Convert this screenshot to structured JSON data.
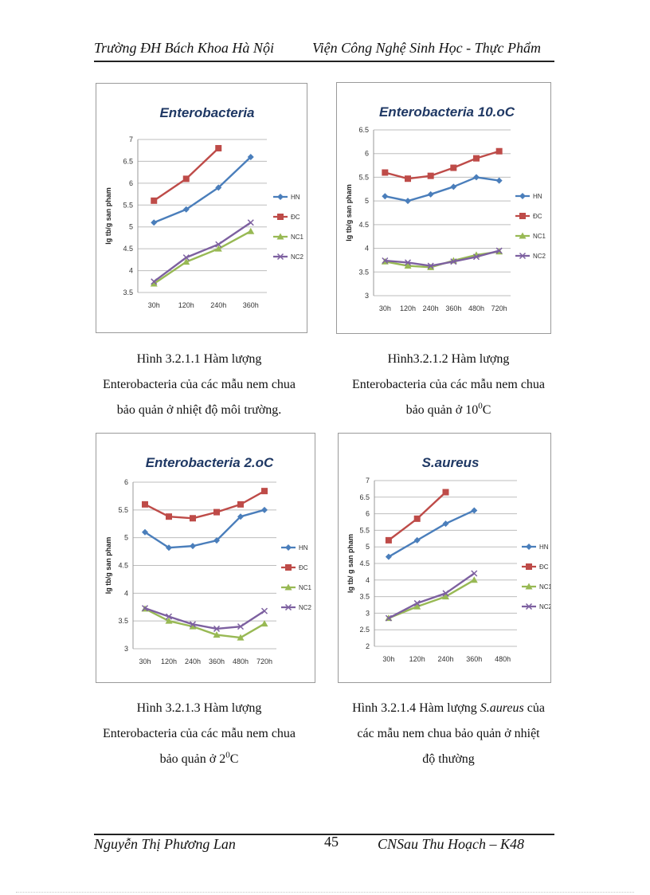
{
  "header": {
    "left": "Trường ĐH Bách Khoa Hà Nội",
    "right": "Viện Công Nghệ Sinh Học - Thực Phẩm"
  },
  "chart_data": [
    {
      "type": "line",
      "title": "Enterobacteria",
      "ylabel": "lg tb/g san pham",
      "ylim": [
        3.5,
        7
      ],
      "yticks": [
        "3.5",
        "4",
        "4.5",
        "5",
        "5.5",
        "6",
        "6.5",
        "7"
      ],
      "categories": [
        "30h",
        "120h",
        "240h",
        "360h"
      ],
      "series": [
        {
          "name": "HN",
          "color": "#4a7ebb",
          "marker": "diamond",
          "values": [
            5.1,
            5.4,
            5.9,
            6.6
          ]
        },
        {
          "name": "ĐC",
          "color": "#be4b48",
          "marker": "square",
          "values": [
            5.6,
            6.1,
            6.8,
            null
          ]
        },
        {
          "name": "NC1",
          "color": "#98b954",
          "marker": "triangle",
          "values": [
            3.7,
            4.2,
            4.5,
            4.9
          ]
        },
        {
          "name": "NC2",
          "color": "#7d60a0",
          "marker": "x",
          "values": [
            3.75,
            4.3,
            4.6,
            5.1
          ]
        }
      ]
    },
    {
      "type": "line",
      "title": "Enterobacteria 10.oC",
      "ylabel": "lg tb/g san pham",
      "ylim": [
        3,
        6.5
      ],
      "yticks": [
        "3",
        "3.5",
        "4",
        "4.5",
        "5",
        "5.5",
        "6",
        "6.5"
      ],
      "categories": [
        "30h",
        "120h",
        "240h",
        "360h",
        "480h",
        "720h"
      ],
      "series": [
        {
          "name": "HN",
          "color": "#4a7ebb",
          "marker": "diamond",
          "values": [
            5.1,
            5.0,
            5.14,
            5.3,
            5.5,
            5.43
          ]
        },
        {
          "name": "ĐC",
          "color": "#be4b48",
          "marker": "square",
          "values": [
            5.6,
            5.47,
            5.53,
            5.7,
            5.9,
            6.05
          ]
        },
        {
          "name": "NC1",
          "color": "#98b954",
          "marker": "triangle",
          "values": [
            3.72,
            3.63,
            3.6,
            3.74,
            3.86,
            3.93
          ]
        },
        {
          "name": "NC2",
          "color": "#7d60a0",
          "marker": "x",
          "values": [
            3.74,
            3.7,
            3.63,
            3.72,
            3.82,
            3.95
          ]
        }
      ]
    },
    {
      "type": "line",
      "title": "Enterobacteria 2.oC",
      "ylabel": "lg tb/g san pham",
      "ylim": [
        3,
        6
      ],
      "yticks": [
        "3",
        "3.5",
        "4",
        "4.5",
        "5",
        "5.5",
        "6"
      ],
      "categories": [
        "30h",
        "120h",
        "240h",
        "360h",
        "480h",
        "720h"
      ],
      "series": [
        {
          "name": "HN",
          "color": "#4a7ebb",
          "marker": "diamond",
          "values": [
            5.1,
            4.82,
            4.85,
            4.95,
            5.38,
            5.5
          ]
        },
        {
          "name": "ĐC",
          "color": "#be4b48",
          "marker": "square",
          "values": [
            5.6,
            5.38,
            5.35,
            5.46,
            5.6,
            5.84
          ]
        },
        {
          "name": "NC1",
          "color": "#98b954",
          "marker": "triangle",
          "values": [
            3.72,
            3.5,
            3.4,
            3.25,
            3.2,
            3.45
          ]
        },
        {
          "name": "NC2",
          "color": "#7d60a0",
          "marker": "x",
          "values": [
            3.73,
            3.58,
            3.44,
            3.36,
            3.4,
            3.68
          ]
        }
      ]
    },
    {
      "type": "line",
      "title": "S.aureus",
      "ylabel": "lg tb/ g san pham",
      "ylim": [
        2,
        7
      ],
      "yticks": [
        "2",
        "2.5",
        "3",
        "3.5",
        "4",
        "4.5",
        "5",
        "5.5",
        "6",
        "6.5",
        "7"
      ],
      "categories": [
        "30h",
        "120h",
        "240h",
        "360h",
        "480h"
      ],
      "series": [
        {
          "name": "HN",
          "color": "#4a7ebb",
          "marker": "diamond",
          "values": [
            4.7,
            5.2,
            5.7,
            6.1,
            null
          ]
        },
        {
          "name": "ĐC",
          "color": "#be4b48",
          "marker": "square",
          "values": [
            5.2,
            5.85,
            6.65,
            null,
            null
          ]
        },
        {
          "name": "NC1",
          "color": "#98b954",
          "marker": "triangle",
          "values": [
            2.85,
            3.2,
            3.5,
            4.0,
            null
          ]
        },
        {
          "name": "NC2",
          "color": "#7d60a0",
          "marker": "x",
          "values": [
            2.85,
            3.3,
            3.6,
            4.2,
            null
          ]
        }
      ]
    }
  ],
  "captions": [
    {
      "line1": "Hình 3.2.1.1 Hàm lượng",
      "line2": "Enterobacteria của các mẫu nem chua",
      "line3": "bảo quản ở nhiệt độ môi trường."
    },
    {
      "line1": "Hình3.2.1.2 Hàm lượng",
      "line2": "Enterobacteria của các mẫu nem chua",
      "line3a": "bảo quản ở 10",
      "line3sup": "0",
      "line3b": "C"
    },
    {
      "line1": "Hình 3.2.1.3 Hàm lượng",
      "line2": "Enterobacteria của các mẫu nem chua",
      "line3a": "bảo quản ở 2",
      "line3sup": "0",
      "line3b": "C"
    },
    {
      "line1a": "Hình 3.2.1.4 Hàm lượng ",
      "line1i": "S.aureus",
      "line1b": " của",
      "line2": "các mẫu nem chua bảo quản ở nhiệt",
      "line3": "độ thường"
    }
  ],
  "footer": {
    "author": "Nguyễn Thị Phương Lan",
    "page_number": "45",
    "course": "CNSau Thu Hoạch – K48"
  }
}
